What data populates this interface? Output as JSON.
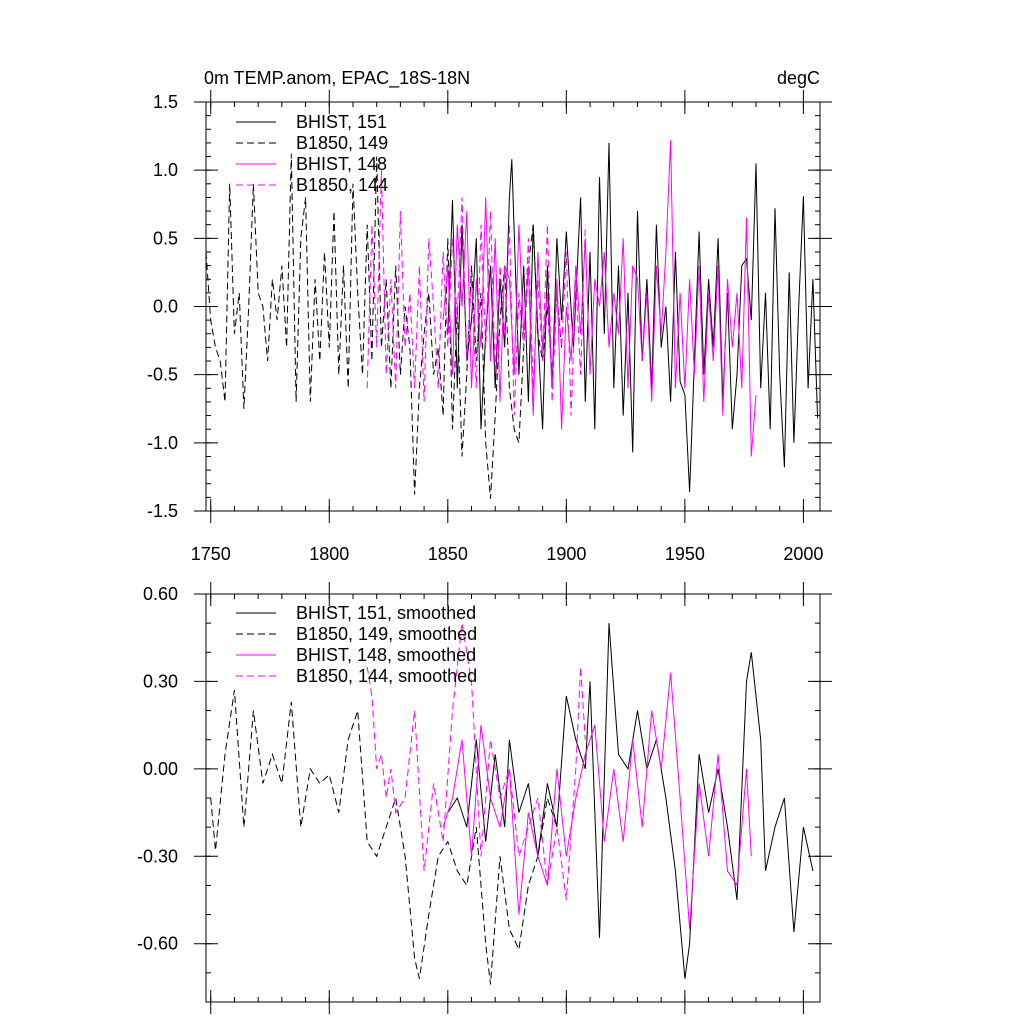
{
  "header": {
    "title": "0m TEMP.anom, EPAC_18S-18N",
    "units": "degC"
  },
  "colors": {
    "black": "#000000",
    "magenta": "#ff00ff"
  },
  "chart_data": [
    {
      "type": "line",
      "title": "0m TEMP.anom, EPAC_18S-18N",
      "units": "degC",
      "xlim": [
        1748,
        2007
      ],
      "ylim": [
        -1.5,
        1.5
      ],
      "x_ticks": [
        "1750",
        "1800",
        "1850",
        "1900",
        "1950",
        "2000"
      ],
      "x_tick_values": [
        1750,
        1800,
        1850,
        1900,
        1950,
        2000
      ],
      "y_ticks": [
        "1.5",
        "1.0",
        "0.5",
        "0.0",
        "-0.5",
        "-1.0",
        "-1.5"
      ],
      "y_tick_values": [
        1.5,
        1.0,
        0.5,
        0.0,
        -0.5,
        -1.0,
        -1.5
      ],
      "legend_position": "top-left",
      "series": [
        {
          "name": "BHIST, 151",
          "color": "#000000",
          "dash": "solid",
          "x": [
            1850,
            1852,
            1854,
            1856,
            1858,
            1860,
            1862,
            1864,
            1866,
            1868,
            1870,
            1872,
            1874,
            1876,
            1877,
            1880,
            1882,
            1884,
            1886,
            1888,
            1890,
            1892,
            1894,
            1896,
            1898,
            1900,
            1903,
            1906,
            1908,
            1910,
            1912,
            1914,
            1916,
            1918,
            1920,
            1922,
            1924,
            1926,
            1928,
            1930,
            1932,
            1934,
            1936,
            1938,
            1940,
            1942,
            1944,
            1946,
            1948,
            1950,
            1952,
            1954,
            1956,
            1958,
            1960,
            1962,
            1964,
            1966,
            1968,
            1970,
            1972,
            1974,
            1976,
            1978,
            1980,
            1982,
            1984,
            1986,
            1988,
            1990,
            1992,
            1994,
            1996,
            1998,
            2000,
            2002,
            2004,
            2006
          ],
          "values": [
            -0.2,
            0.78,
            -0.6,
            0.6,
            -0.4,
            -0.1,
            0.5,
            -0.9,
            -0.2,
            0.3,
            -0.6,
            0.2,
            -0.3,
            0.8,
            1.08,
            -0.5,
            0.3,
            -0.7,
            0.6,
            -0.2,
            -0.9,
            0.3,
            -0.6,
            0.5,
            -0.1,
            0.55,
            -0.3,
            0.8,
            -0.7,
            0.4,
            -0.9,
            0.95,
            -0.2,
            1.2,
            -0.6,
            0.3,
            -0.8,
            0.1,
            -1.07,
            0.7,
            -0.4,
            0.2,
            -0.6,
            0.6,
            -0.3,
            0.0,
            -0.7,
            0.4,
            -0.55,
            -0.65,
            -1.36,
            -0.4,
            0.55,
            -0.5,
            0.2,
            -0.3,
            0.5,
            -0.7,
            0.1,
            -0.9,
            -0.5,
            0.3,
            0.35,
            -0.1,
            1.05,
            -0.6,
            0.1,
            -0.9,
            0.72,
            -0.5,
            -1.18,
            0.25,
            -1.0,
            0.0,
            0.81,
            -0.6,
            0.2,
            -0.82
          ]
        },
        {
          "name": "B1850, 149",
          "color": "#000000",
          "dash": "dashed",
          "x": [
            1748,
            1750,
            1752,
            1754,
            1756,
            1758,
            1760,
            1762,
            1764,
            1766,
            1768,
            1770,
            1772,
            1774,
            1776,
            1778,
            1780,
            1782,
            1784,
            1786,
            1788,
            1790,
            1792,
            1794,
            1796,
            1798,
            1800,
            1802,
            1804,
            1806,
            1808,
            1810,
            1812,
            1814,
            1816,
            1818,
            1820,
            1822,
            1824,
            1826,
            1828,
            1830,
            1832,
            1834,
            1836,
            1838,
            1840,
            1842,
            1844,
            1846,
            1848,
            1850,
            1852,
            1854,
            1856,
            1858,
            1860,
            1862,
            1864,
            1866,
            1868,
            1870,
            1872,
            1874,
            1876,
            1878,
            1880,
            1882,
            1884,
            1886,
            1888,
            1890,
            1892,
            1894,
            1896,
            1898
          ],
          "values": [
            0.4,
            -0.1,
            -0.3,
            -0.4,
            -0.7,
            0.9,
            -0.2,
            0.1,
            -0.75,
            0.0,
            0.9,
            0.1,
            0.0,
            -0.4,
            0.2,
            -0.1,
            0.3,
            -0.3,
            1.12,
            -0.7,
            0.5,
            0.8,
            -0.7,
            0.2,
            -0.4,
            0.4,
            -0.3,
            0.7,
            -0.5,
            0.3,
            -0.6,
            0.9,
            0.1,
            -0.5,
            0.6,
            -0.4,
            1.1,
            -0.3,
            0.2,
            -0.6,
            0.3,
            -0.5,
            0.0,
            -0.3,
            -1.38,
            -0.6,
            -0.2,
            0.1,
            -0.5,
            -0.3,
            -0.8,
            0.5,
            -0.9,
            0.0,
            -1.1,
            -0.5,
            0.3,
            -0.4,
            0.1,
            -1.0,
            -1.41,
            -0.8,
            -0.1,
            0.3,
            -0.6,
            -0.9,
            -1.0,
            -0.3,
            0.3,
            0.6,
            -0.2,
            -0.4,
            0.0,
            -0.5,
            0.1,
            -0.3
          ]
        },
        {
          "name": "BHIST, 148",
          "color": "#ff00ff",
          "dash": "solid",
          "x": [
            1848,
            1850,
            1852,
            1854,
            1856,
            1858,
            1860,
            1862,
            1864,
            1866,
            1868,
            1870,
            1872,
            1874,
            1876,
            1878,
            1880,
            1882,
            1884,
            1886,
            1888,
            1890,
            1892,
            1894,
            1896,
            1898,
            1900,
            1902,
            1904,
            1906,
            1908,
            1910,
            1912,
            1914,
            1916,
            1918,
            1920,
            1922,
            1924,
            1926,
            1928,
            1930,
            1932,
            1934,
            1936,
            1938,
            1940,
            1942,
            1944,
            1946,
            1948,
            1950,
            1952,
            1954,
            1956,
            1958,
            1960,
            1962,
            1964,
            1966,
            1968,
            1970,
            1972,
            1974,
            1976,
            1978,
            1980
          ],
          "values": [
            -0.1,
            0.3,
            -0.5,
            0.6,
            0.0,
            0.7,
            -0.6,
            0.2,
            -0.3,
            0.8,
            -0.4,
            0.5,
            -0.7,
            0.3,
            0.2,
            -0.5,
            0.6,
            -0.2,
            0.3,
            -0.8,
            0.4,
            -0.3,
            0.1,
            -0.6,
            0.2,
            -0.9,
            0.0,
            -0.4,
            0.3,
            -0.2,
            0.5,
            -0.5,
            0.2,
            0.0,
            0.4,
            -0.3,
            0.1,
            -0.2,
            0.5,
            -0.6,
            0.3,
            0.2,
            -0.4,
            0.1,
            -0.7,
            0.3,
            -0.2,
            0.4,
            1.22,
            -0.6,
            0.1,
            -0.6,
            0.2,
            -0.5,
            0.3,
            -0.7,
            0.1,
            -0.4,
            0.3,
            -0.8,
            0.2,
            -0.3,
            0.1,
            -0.6,
            0.65,
            -1.1,
            -0.65
          ]
        },
        {
          "name": "B1850, 144",
          "color": "#ff00ff",
          "dash": "dashed",
          "x": [
            1816,
            1818,
            1820,
            1822,
            1824,
            1826,
            1828,
            1830,
            1832,
            1834,
            1836,
            1838,
            1840,
            1842,
            1844,
            1846,
            1848,
            1850,
            1852,
            1854,
            1856,
            1858,
            1860,
            1862,
            1864,
            1866,
            1868,
            1870,
            1872,
            1874,
            1876,
            1878,
            1880,
            1882,
            1884,
            1886,
            1888,
            1890,
            1892,
            1894,
            1896,
            1898,
            1900,
            1902,
            1904,
            1906,
            1908
          ],
          "values": [
            -0.6,
            0.6,
            -0.3,
            1.0,
            -0.5,
            0.2,
            -0.6,
            0.7,
            -0.3,
            0.1,
            -0.6,
            0.3,
            -0.7,
            0.5,
            0.0,
            -0.6,
            0.4,
            -0.3,
            0.5,
            -0.1,
            0.8,
            -0.4,
            0.2,
            -0.6,
            0.6,
            -0.3,
            0.7,
            -0.5,
            0.3,
            -0.2,
            0.6,
            -0.8,
            0.1,
            -0.3,
            0.5,
            -0.6,
            0.2,
            -0.4,
            0.6,
            -0.7,
            0.1,
            -0.3,
            0.4,
            -0.8,
            0.2,
            -0.5,
            0.6
          ]
        }
      ]
    },
    {
      "type": "line",
      "xlim": [
        1748,
        2007
      ],
      "ylim": [
        -0.8,
        0.6
      ],
      "x_tick_values": [
        1750,
        1800,
        1850,
        1900,
        1950,
        2000
      ],
      "y_ticks": [
        "0.60",
        "0.30",
        "0.00",
        "-0.30",
        "-0.60"
      ],
      "y_tick_values": [
        0.6,
        0.3,
        0.0,
        -0.3,
        -0.6
      ],
      "legend_position": "top-left",
      "series": [
        {
          "name": "BHIST, 151, smoothed",
          "color": "#000000",
          "dash": "solid",
          "x": [
            1850,
            1854,
            1858,
            1862,
            1866,
            1870,
            1874,
            1876,
            1880,
            1884,
            1888,
            1892,
            1896,
            1900,
            1904,
            1908,
            1910,
            1914,
            1918,
            1922,
            1926,
            1930,
            1934,
            1938,
            1942,
            1946,
            1950,
            1952,
            1956,
            1960,
            1964,
            1968,
            1972,
            1976,
            1978,
            1982,
            1984,
            1988,
            1992,
            1996,
            2000,
            2004
          ],
          "values": [
            -0.15,
            -0.1,
            -0.2,
            0.1,
            -0.25,
            0.05,
            -0.2,
            0.1,
            -0.15,
            -0.05,
            -0.3,
            -0.05,
            -0.2,
            0.25,
            0.1,
            0.0,
            0.3,
            -0.58,
            0.5,
            0.05,
            0.0,
            0.2,
            0.0,
            0.1,
            -0.1,
            -0.35,
            -0.72,
            -0.6,
            0.05,
            -0.15,
            0.0,
            -0.2,
            -0.45,
            0.3,
            0.4,
            0.1,
            -0.35,
            -0.2,
            -0.1,
            -0.56,
            -0.2,
            -0.35
          ]
        },
        {
          "name": "B1850, 149, smoothed",
          "color": "#000000",
          "dash": "dashed",
          "x": [
            1750,
            1752,
            1756,
            1760,
            1764,
            1768,
            1772,
            1776,
            1780,
            1784,
            1788,
            1792,
            1796,
            1800,
            1804,
            1808,
            1812,
            1816,
            1820,
            1824,
            1828,
            1832,
            1836,
            1838,
            1842,
            1846,
            1850,
            1854,
            1858,
            1862,
            1866,
            1868,
            1872,
            1876,
            1880,
            1884,
            1888,
            1892,
            1896
          ],
          "values": [
            -0.1,
            -0.28,
            0.05,
            0.27,
            -0.2,
            0.2,
            -0.05,
            0.05,
            -0.05,
            0.23,
            -0.2,
            0.0,
            -0.05,
            -0.02,
            -0.15,
            0.1,
            0.2,
            -0.25,
            -0.3,
            -0.2,
            -0.1,
            -0.3,
            -0.65,
            -0.72,
            -0.5,
            -0.3,
            -0.25,
            -0.35,
            -0.4,
            -0.2,
            -0.6,
            -0.74,
            -0.3,
            -0.55,
            -0.62,
            -0.4,
            -0.3,
            -0.1,
            -0.2
          ]
        },
        {
          "name": "BHIST, 148, smoothed",
          "color": "#ff00ff",
          "dash": "solid",
          "x": [
            1848,
            1852,
            1856,
            1860,
            1864,
            1868,
            1872,
            1876,
            1880,
            1884,
            1888,
            1892,
            1896,
            1900,
            1904,
            1908,
            1912,
            1916,
            1920,
            1924,
            1928,
            1932,
            1936,
            1940,
            1944,
            1948,
            1952,
            1956,
            1960,
            1964,
            1968,
            1972,
            1976,
            1978
          ],
          "values": [
            -0.2,
            -0.1,
            0.1,
            -0.3,
            0.15,
            -0.1,
            -0.2,
            0.0,
            -0.5,
            -0.15,
            -0.3,
            -0.4,
            0.0,
            -0.3,
            -0.1,
            0.05,
            0.15,
            -0.25,
            0.0,
            -0.25,
            0.1,
            -0.2,
            0.2,
            0.0,
            0.33,
            -0.1,
            -0.55,
            -0.05,
            -0.3,
            0.05,
            -0.35,
            -0.4,
            0.0,
            -0.3
          ]
        },
        {
          "name": "B1850, 144, smoothed",
          "color": "#ff00ff",
          "dash": "dashed",
          "x": [
            1816,
            1818,
            1820,
            1822,
            1824,
            1826,
            1828,
            1832,
            1836,
            1840,
            1844,
            1848,
            1852,
            1856,
            1860,
            1864,
            1868,
            1872,
            1876,
            1880,
            1884,
            1888,
            1892,
            1896,
            1900,
            1904,
            1906,
            1908
          ],
          "values": [
            0.35,
            0.25,
            0.0,
            0.05,
            -0.1,
            0.0,
            -0.15,
            -0.1,
            0.2,
            -0.35,
            -0.05,
            -0.25,
            0.2,
            0.5,
            0.3,
            -0.3,
            0.1,
            -0.1,
            0.0,
            -0.3,
            -0.2,
            -0.1,
            -0.4,
            -0.2,
            -0.45,
            0.0,
            0.35,
            0.1
          ]
        }
      ]
    }
  ]
}
